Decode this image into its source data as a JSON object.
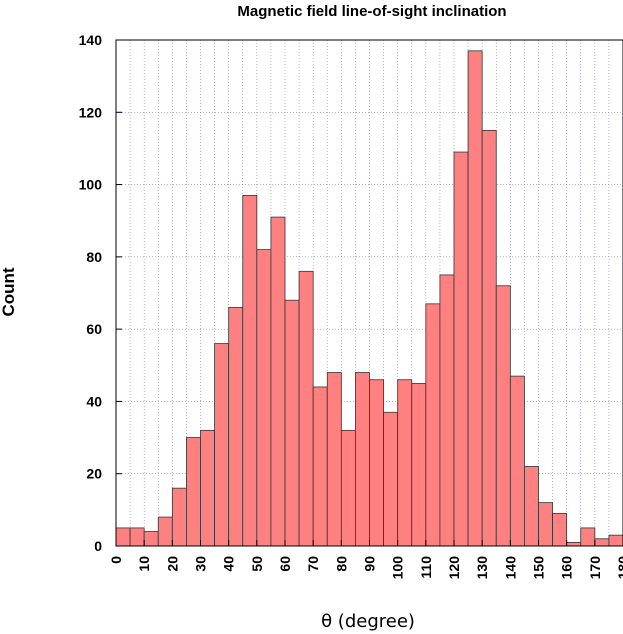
{
  "chart_data": {
    "type": "bar",
    "title": "Magnetic field line-of-sight inclination",
    "xlabel": "θ (degree)",
    "ylabel": "Count",
    "xlim": [
      0,
      180
    ],
    "ylim": [
      0,
      140
    ],
    "bin_width": 5,
    "x_ticks": [
      0,
      10,
      20,
      30,
      40,
      50,
      60,
      70,
      80,
      90,
      100,
      110,
      120,
      130,
      140,
      150,
      160,
      170,
      180
    ],
    "y_ticks": [
      0,
      20,
      40,
      60,
      80,
      100,
      120,
      140
    ],
    "bin_starts": [
      0,
      5,
      10,
      15,
      20,
      25,
      30,
      35,
      40,
      45,
      50,
      55,
      60,
      65,
      70,
      75,
      80,
      85,
      90,
      95,
      100,
      105,
      110,
      115,
      120,
      125,
      130,
      135,
      140,
      145,
      150,
      155,
      160,
      165,
      170,
      175
    ],
    "values": [
      5,
      5,
      4,
      8,
      16,
      30,
      32,
      56,
      66,
      97,
      82,
      91,
      68,
      76,
      44,
      48,
      32,
      48,
      46,
      37,
      46,
      45,
      67,
      75,
      109,
      137,
      115,
      72,
      47,
      22,
      12,
      9,
      1,
      5,
      2,
      3
    ],
    "grid": true,
    "bar_color": "#ff8080",
    "bar_edge_color": "#333333",
    "grid_color": "#8080c0"
  }
}
